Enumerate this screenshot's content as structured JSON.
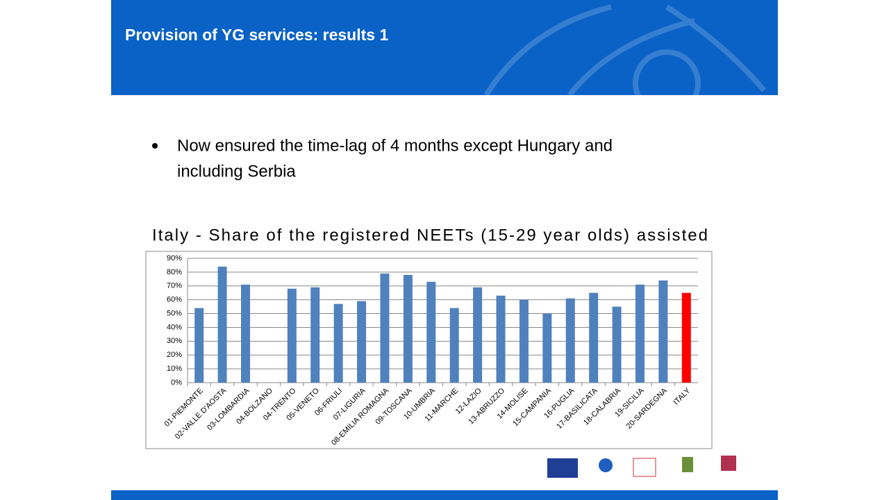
{
  "header": {
    "title": "Provision of YG services: results 1"
  },
  "bullets": [
    [
      "Now ensured the time-lag of 4 months except Hungary and",
      "including Serbia"
    ]
  ],
  "chart_data": {
    "type": "bar",
    "title": "Italy - Share of the registered NEETs (15-29 year olds) assisted",
    "categories": [
      "01-PIEMONTE",
      "02-VALLE D'AOSTA",
      "03-LOMBARDIA",
      "04-BOLZANO",
      "04-TRENTO",
      "05-VENETO",
      "06-FRIULI",
      "07-LIGURIA",
      "08-EMILIA ROMAGNA",
      "09-TOSCANA",
      "10-UMBRIA",
      "11-MARCHE",
      "12-LAZIO",
      "13-ABRUZZO",
      "14-MOLISE",
      "15-CAMPANIA",
      "16-PUGLIA",
      "17-BASILICATA",
      "18-CALABRIA",
      "19-SICILIA",
      "20-SARDEGNA",
      "ITALY"
    ],
    "values": [
      54,
      84,
      71,
      null,
      68,
      69,
      57,
      59,
      79,
      78,
      73,
      54,
      69,
      63,
      60,
      50,
      61,
      65,
      55,
      71,
      74,
      65
    ],
    "colors": [
      "#4f81bd",
      "#4f81bd",
      "#4f81bd",
      "#4f81bd",
      "#4f81bd",
      "#4f81bd",
      "#4f81bd",
      "#4f81bd",
      "#4f81bd",
      "#4f81bd",
      "#4f81bd",
      "#4f81bd",
      "#4f81bd",
      "#4f81bd",
      "#4f81bd",
      "#4f81bd",
      "#4f81bd",
      "#4f81bd",
      "#4f81bd",
      "#4f81bd",
      "#4f81bd",
      "#ff0000"
    ],
    "ylim": [
      0,
      90
    ],
    "yticks": [
      {
        "value": 0,
        "label": "0%"
      },
      {
        "value": 10,
        "label": "10%"
      },
      {
        "value": 20,
        "label": "20%"
      },
      {
        "value": 30,
        "label": "30%"
      },
      {
        "value": 40,
        "label": "40%"
      },
      {
        "value": 50,
        "label": "50%"
      },
      {
        "value": 60,
        "label": "60%"
      },
      {
        "value": 70,
        "label": "70%"
      },
      {
        "value": 80,
        "label": "80%"
      },
      {
        "value": 90,
        "label": "90%"
      }
    ],
    "grid": true
  }
}
